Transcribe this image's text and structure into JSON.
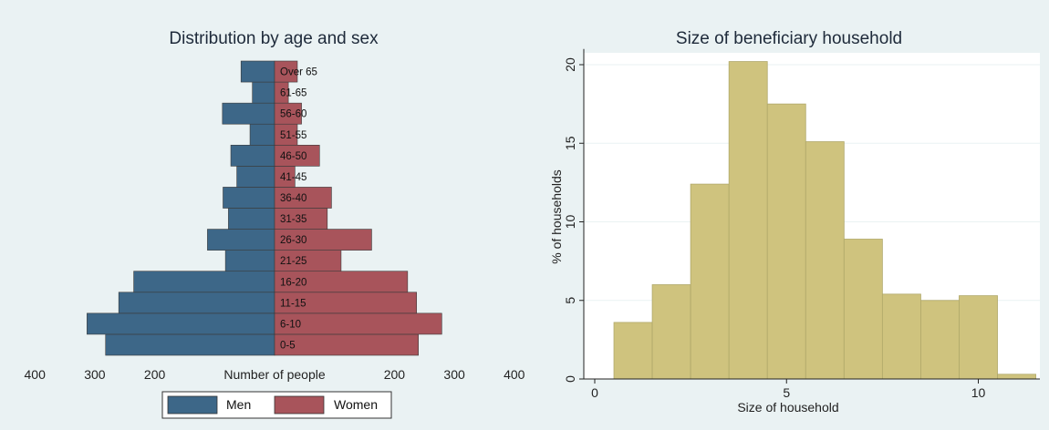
{
  "colors": {
    "background": "#eaf2f3",
    "plot_background": "#ffffff",
    "men": "#3d6788",
    "women": "#a8545b",
    "histogram_bar": "#cfc37e",
    "histogram_bar_stroke": "#b0a86a",
    "gridline": "#eaf2f3",
    "axis": "#222222",
    "bar_stroke": "#3a3a3a"
  },
  "chart_data": [
    {
      "type": "bar",
      "orientation": "horizontal",
      "style": "population-pyramid",
      "title": "Distribution by age and sex",
      "xlabel": "Number of people",
      "ylabel": "",
      "xlim": [
        -400,
        400
      ],
      "xticks": [
        -400,
        -300,
        -200,
        200,
        300,
        400
      ],
      "xtick_labels": [
        "400",
        "300",
        "200",
        "200",
        "300",
        "400"
      ],
      "grid": false,
      "legend_position": "bottom",
      "categories": [
        "0-5",
        "6-10",
        "11-15",
        "16-20",
        "21-25",
        "26-30",
        "31-35",
        "36-40",
        "41-45",
        "46-50",
        "51-55",
        "56-60",
        "61-65",
        "Over 65"
      ],
      "series": [
        {
          "name": "Men",
          "values": [
            282,
            313,
            260,
            235,
            82,
            112,
            77,
            86,
            63,
            73,
            41,
            87,
            37,
            56
          ]
        },
        {
          "name": "Women",
          "values": [
            240,
            279,
            237,
            222,
            111,
            162,
            88,
            95,
            34,
            75,
            38,
            45,
            23,
            38
          ]
        }
      ]
    },
    {
      "type": "bar",
      "style": "histogram",
      "title": "Size of beneficiary household",
      "xlabel": "Size of household",
      "ylabel": "% of households",
      "xlim": [
        -0.5,
        11.7
      ],
      "ylim": [
        0,
        21
      ],
      "xticks": [
        0,
        5,
        10
      ],
      "yticks": [
        0,
        5,
        10,
        15,
        20
      ],
      "grid": true,
      "bin_width": 1,
      "bin_starts": [
        0.5,
        1.5,
        2.5,
        3.5,
        4.5,
        5.5,
        6.5,
        7.5,
        8.5,
        9.5,
        10.5
      ],
      "values": [
        3.6,
        6.0,
        12.4,
        20.2,
        17.5,
        15.1,
        8.9,
        5.4,
        5.0,
        5.3,
        0.3
      ]
    }
  ]
}
